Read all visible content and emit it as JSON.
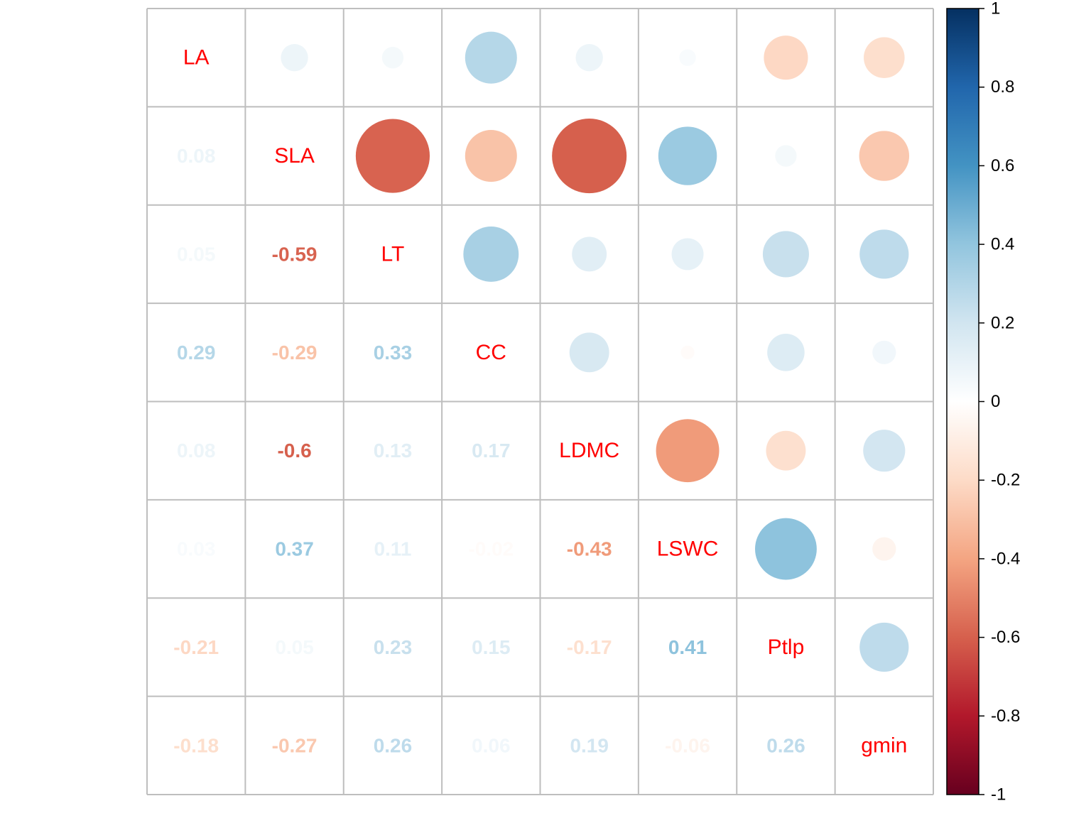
{
  "chart_data": {
    "type": "heatmap",
    "variables": [
      "LA",
      "SLA",
      "LT",
      "CC",
      "LDMC",
      "LSWC",
      "Ptlp",
      "gmin"
    ],
    "label_color": "#ff0000",
    "upper_method": "circle",
    "lower_method": "number",
    "matrix": [
      [
        1,
        0.08,
        0.05,
        0.29,
        0.08,
        0.03,
        -0.21,
        -0.18
      ],
      [
        0.08,
        1,
        -0.59,
        -0.29,
        -0.6,
        0.37,
        0.05,
        -0.27
      ],
      [
        0.05,
        -0.59,
        1,
        0.33,
        0.13,
        0.11,
        0.23,
        0.26
      ],
      [
        0.29,
        -0.29,
        0.33,
        1,
        0.17,
        -0.02,
        0.15,
        0.06
      ],
      [
        0.08,
        -0.6,
        0.13,
        0.17,
        1,
        -0.43,
        -0.17,
        0.19
      ],
      [
        0.03,
        0.37,
        0.11,
        -0.02,
        -0.43,
        1,
        0.41,
        -0.06
      ],
      [
        -0.21,
        0.05,
        0.23,
        0.15,
        -0.17,
        0.41,
        1,
        0.26
      ],
      [
        -0.18,
        -0.27,
        0.26,
        0.06,
        0.19,
        -0.06,
        0.26,
        1
      ]
    ],
    "colorbar": {
      "range": [
        -1,
        1
      ],
      "ticks": [
        "1",
        "0.8",
        "0.6",
        "0.4",
        "0.2",
        "0",
        "-0.2",
        "-0.4",
        "-0.6",
        "-0.8",
        "-1"
      ],
      "palette": [
        "#67001F",
        "#B2182B",
        "#D6604D",
        "#F4A582",
        "#FDDBC7",
        "#FFFFFF",
        "#D1E5F0",
        "#92C5DE",
        "#4393C3",
        "#2166AC",
        "#053061"
      ]
    },
    "grid_color": "#bebebe"
  }
}
